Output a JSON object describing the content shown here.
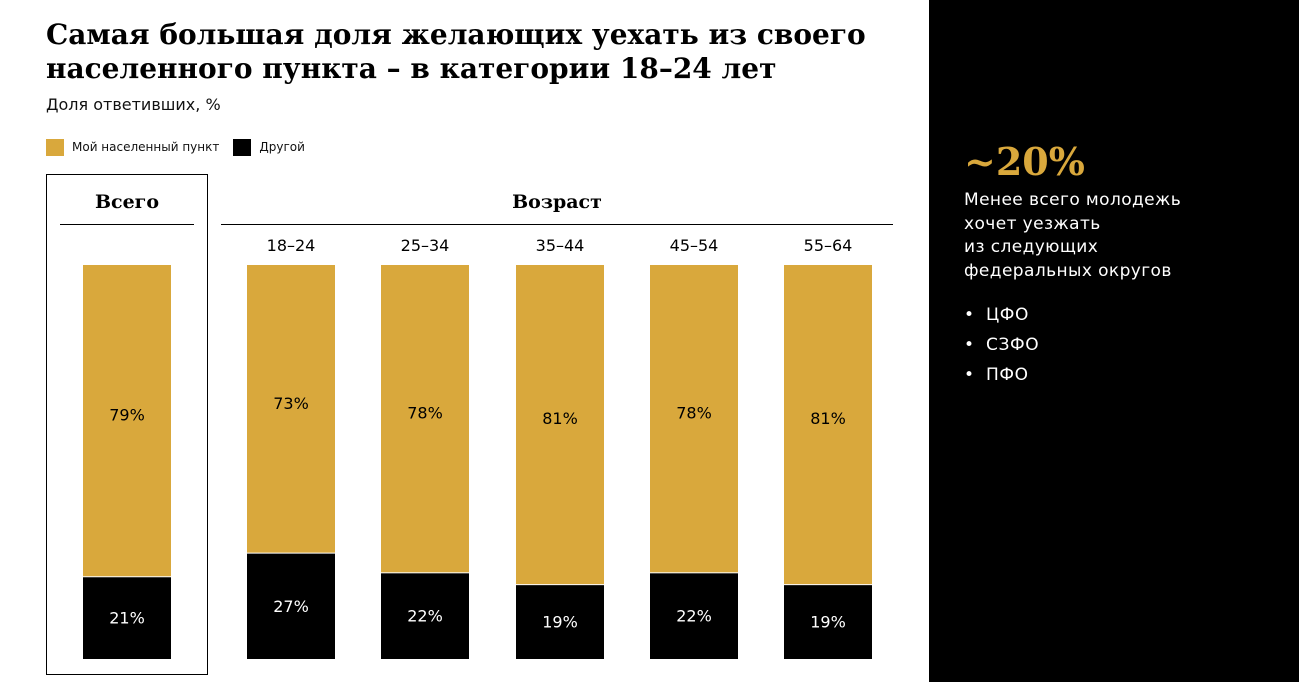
{
  "header": {
    "title": "Самая большая доля желающих уехать из своего населенного пункта – в категории 18–24 лет",
    "subtitle": "Доля ответивших, %"
  },
  "colors": {
    "own": "#d9a83c",
    "other": "#000000",
    "panel_bg": "#000000",
    "accent": "#d9a83c"
  },
  "legend": [
    {
      "label": "Мой населенный пункт",
      "color": "#d9a83c"
    },
    {
      "label": "Другой",
      "color": "#000000"
    }
  ],
  "groups": {
    "total_label": "Всего",
    "age_label": "Возраст"
  },
  "chart_data": {
    "type": "bar",
    "stacked": true,
    "normalized": true,
    "categories": [
      "Всего",
      "18–24",
      "25–34",
      "35–44",
      "45–54",
      "55–64"
    ],
    "series": [
      {
        "name": "Мой населенный пункт",
        "values": [
          79,
          73,
          78,
          81,
          78,
          81
        ],
        "labels": [
          "79%",
          "73%",
          "78%",
          "81%",
          "78%",
          "81%"
        ]
      },
      {
        "name": "Другой",
        "values": [
          21,
          27,
          22,
          19,
          22,
          19
        ],
        "labels": [
          "21%",
          "27%",
          "22%",
          "19%",
          "22%",
          "19%"
        ]
      }
    ],
    "title": "Самая большая доля желающих уехать из своего населенного пункта – в категории 18–24 лет",
    "ylabel": "Доля ответивших, %",
    "ylim": [
      0,
      100
    ],
    "grid": false,
    "legend_position": "top-left"
  },
  "side": {
    "big_value": "~20%",
    "lines": [
      "Менее всего молодежь",
      "хочет уезжать",
      "из следующих",
      "федеральных округов"
    ],
    "bullet": "•",
    "items": [
      "ЦФО",
      "СЗФО",
      "ПФО"
    ]
  }
}
